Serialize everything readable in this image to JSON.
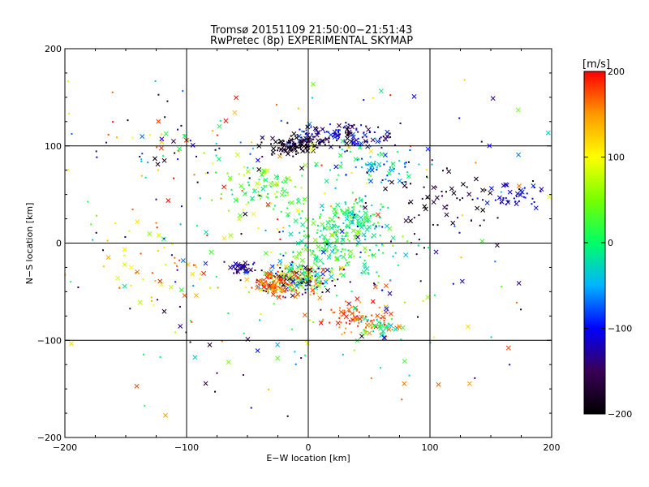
{
  "chart_data": {
    "type": "scatter",
    "title": "Tromsø 20151109 21:50:00−21:51:43",
    "subtitle": "RwPretec (8p) EXPERIMENTAL SKYMAP",
    "xlabel": "E−W location [km]",
    "ylabel": "N−S location [km]",
    "xlim": [
      -200,
      200
    ],
    "ylim": [
      -200,
      200
    ],
    "xticks": [
      "−200",
      "−100",
      "0",
      "100",
      "200"
    ],
    "yticks": [
      "−200",
      "−100",
      "0",
      "100",
      "200"
    ],
    "grid": true,
    "colorbar": {
      "unit": "[m/s]",
      "range": [
        -200,
        200
      ],
      "ticks": [
        "200",
        "100",
        "0",
        "−100",
        "−200"
      ],
      "colors": [
        "#000000",
        "#3a0055",
        "#0000ff",
        "#00b4ff",
        "#00ff66",
        "#77ff00",
        "#ffff00",
        "#ff9900",
        "#ff0000"
      ]
    },
    "clusters": [
      {
        "cx": -10,
        "cy": -38,
        "sx": 16,
        "sy": 8,
        "n": 260,
        "v": [
          -200,
          200
        ]
      },
      {
        "cx": -30,
        "cy": -42,
        "sx": 8,
        "sy": 6,
        "n": 80,
        "v": [
          150,
          200
        ]
      },
      {
        "cx": -55,
        "cy": -25,
        "sx": 5,
        "sy": 3,
        "n": 45,
        "v": [
          -160,
          -100
        ]
      },
      {
        "cx": 45,
        "cy": -78,
        "sx": 14,
        "sy": 8,
        "n": 90,
        "v": [
          140,
          200
        ]
      },
      {
        "cx": 60,
        "cy": -88,
        "sx": 10,
        "sy": 6,
        "n": 30,
        "v": [
          -60,
          40
        ]
      },
      {
        "cx": 25,
        "cy": 5,
        "sx": 22,
        "sy": 18,
        "n": 220,
        "v": [
          -40,
          60
        ]
      },
      {
        "cx": 40,
        "cy": 25,
        "sx": 12,
        "sy": 10,
        "n": 70,
        "v": [
          -40,
          30
        ]
      },
      {
        "cx": 25,
        "cy": 110,
        "sx": 22,
        "sy": 7,
        "n": 150,
        "v": [
          -200,
          -80
        ]
      },
      {
        "cx": -10,
        "cy": 100,
        "sx": 12,
        "sy": 5,
        "n": 90,
        "v": [
          -200,
          -170
        ]
      },
      {
        "cx": 55,
        "cy": 80,
        "sx": 18,
        "sy": 12,
        "n": 80,
        "v": [
          -100,
          20
        ]
      },
      {
        "cx": -30,
        "cy": 55,
        "sx": 18,
        "sy": 12,
        "n": 90,
        "v": [
          -20,
          100
        ]
      },
      {
        "cx": 170,
        "cy": 48,
        "sx": 12,
        "sy": 6,
        "n": 40,
        "v": [
          -130,
          -90
        ]
      },
      {
        "cx": 105,
        "cy": 40,
        "sx": 30,
        "sy": 20,
        "n": 70,
        "v": [
          -200,
          -150
        ]
      },
      {
        "cx": -110,
        "cy": 100,
        "sx": 40,
        "sy": 15,
        "n": 60,
        "v": [
          -200,
          200
        ]
      },
      {
        "cx": 0,
        "cy": 0,
        "sx": 110,
        "sy": 90,
        "n": 320,
        "v": [
          -200,
          200
        ]
      },
      {
        "cx": -110,
        "cy": -20,
        "sx": 25,
        "sy": 20,
        "n": 45,
        "v": [
          80,
          200
        ]
      }
    ]
  }
}
